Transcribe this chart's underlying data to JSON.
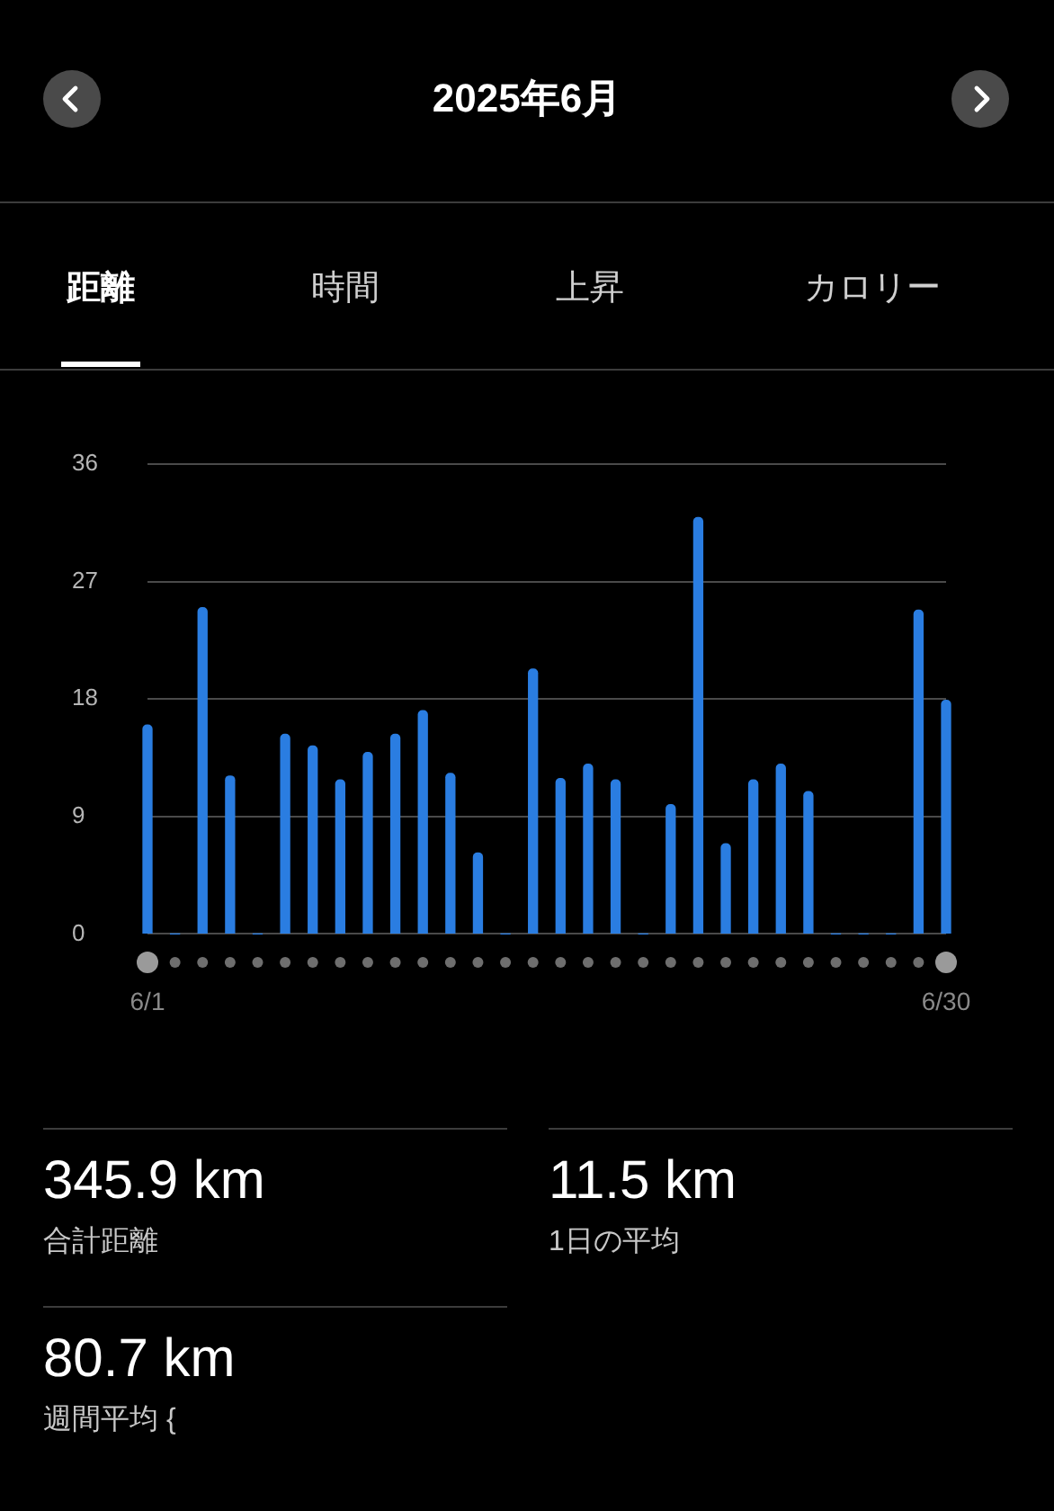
{
  "chart_data": {
    "type": "bar",
    "title": "2025年6月",
    "categories": [
      "6/1",
      null,
      null,
      null,
      null,
      null,
      null,
      null,
      null,
      null,
      null,
      null,
      null,
      null,
      null,
      null,
      null,
      null,
      null,
      null,
      null,
      null,
      null,
      null,
      null,
      null,
      null,
      null,
      null,
      "6/30"
    ],
    "values": [
      16,
      0,
      25,
      12.1,
      0,
      15.3,
      14.4,
      11.8,
      13.9,
      15.3,
      17.1,
      12.3,
      6.2,
      0,
      20.3,
      11.9,
      13,
      11.8,
      0,
      9.9,
      31.9,
      6.9,
      11.8,
      13,
      10.9,
      0,
      0,
      0,
      24.8,
      17.9
    ],
    "color": "#2a7de1",
    "ylim": [
      0,
      36
    ],
    "yticks": [
      0,
      9,
      18,
      27,
      36
    ],
    "grid": "y",
    "annotations": [
      "距離",
      "時間",
      "上昇",
      "カロリー",
      "345.9 km",
      "合計距離",
      "11.5 km",
      "1日の平均",
      "80.7 km",
      "週間平均 {"
    ]
  }
}
